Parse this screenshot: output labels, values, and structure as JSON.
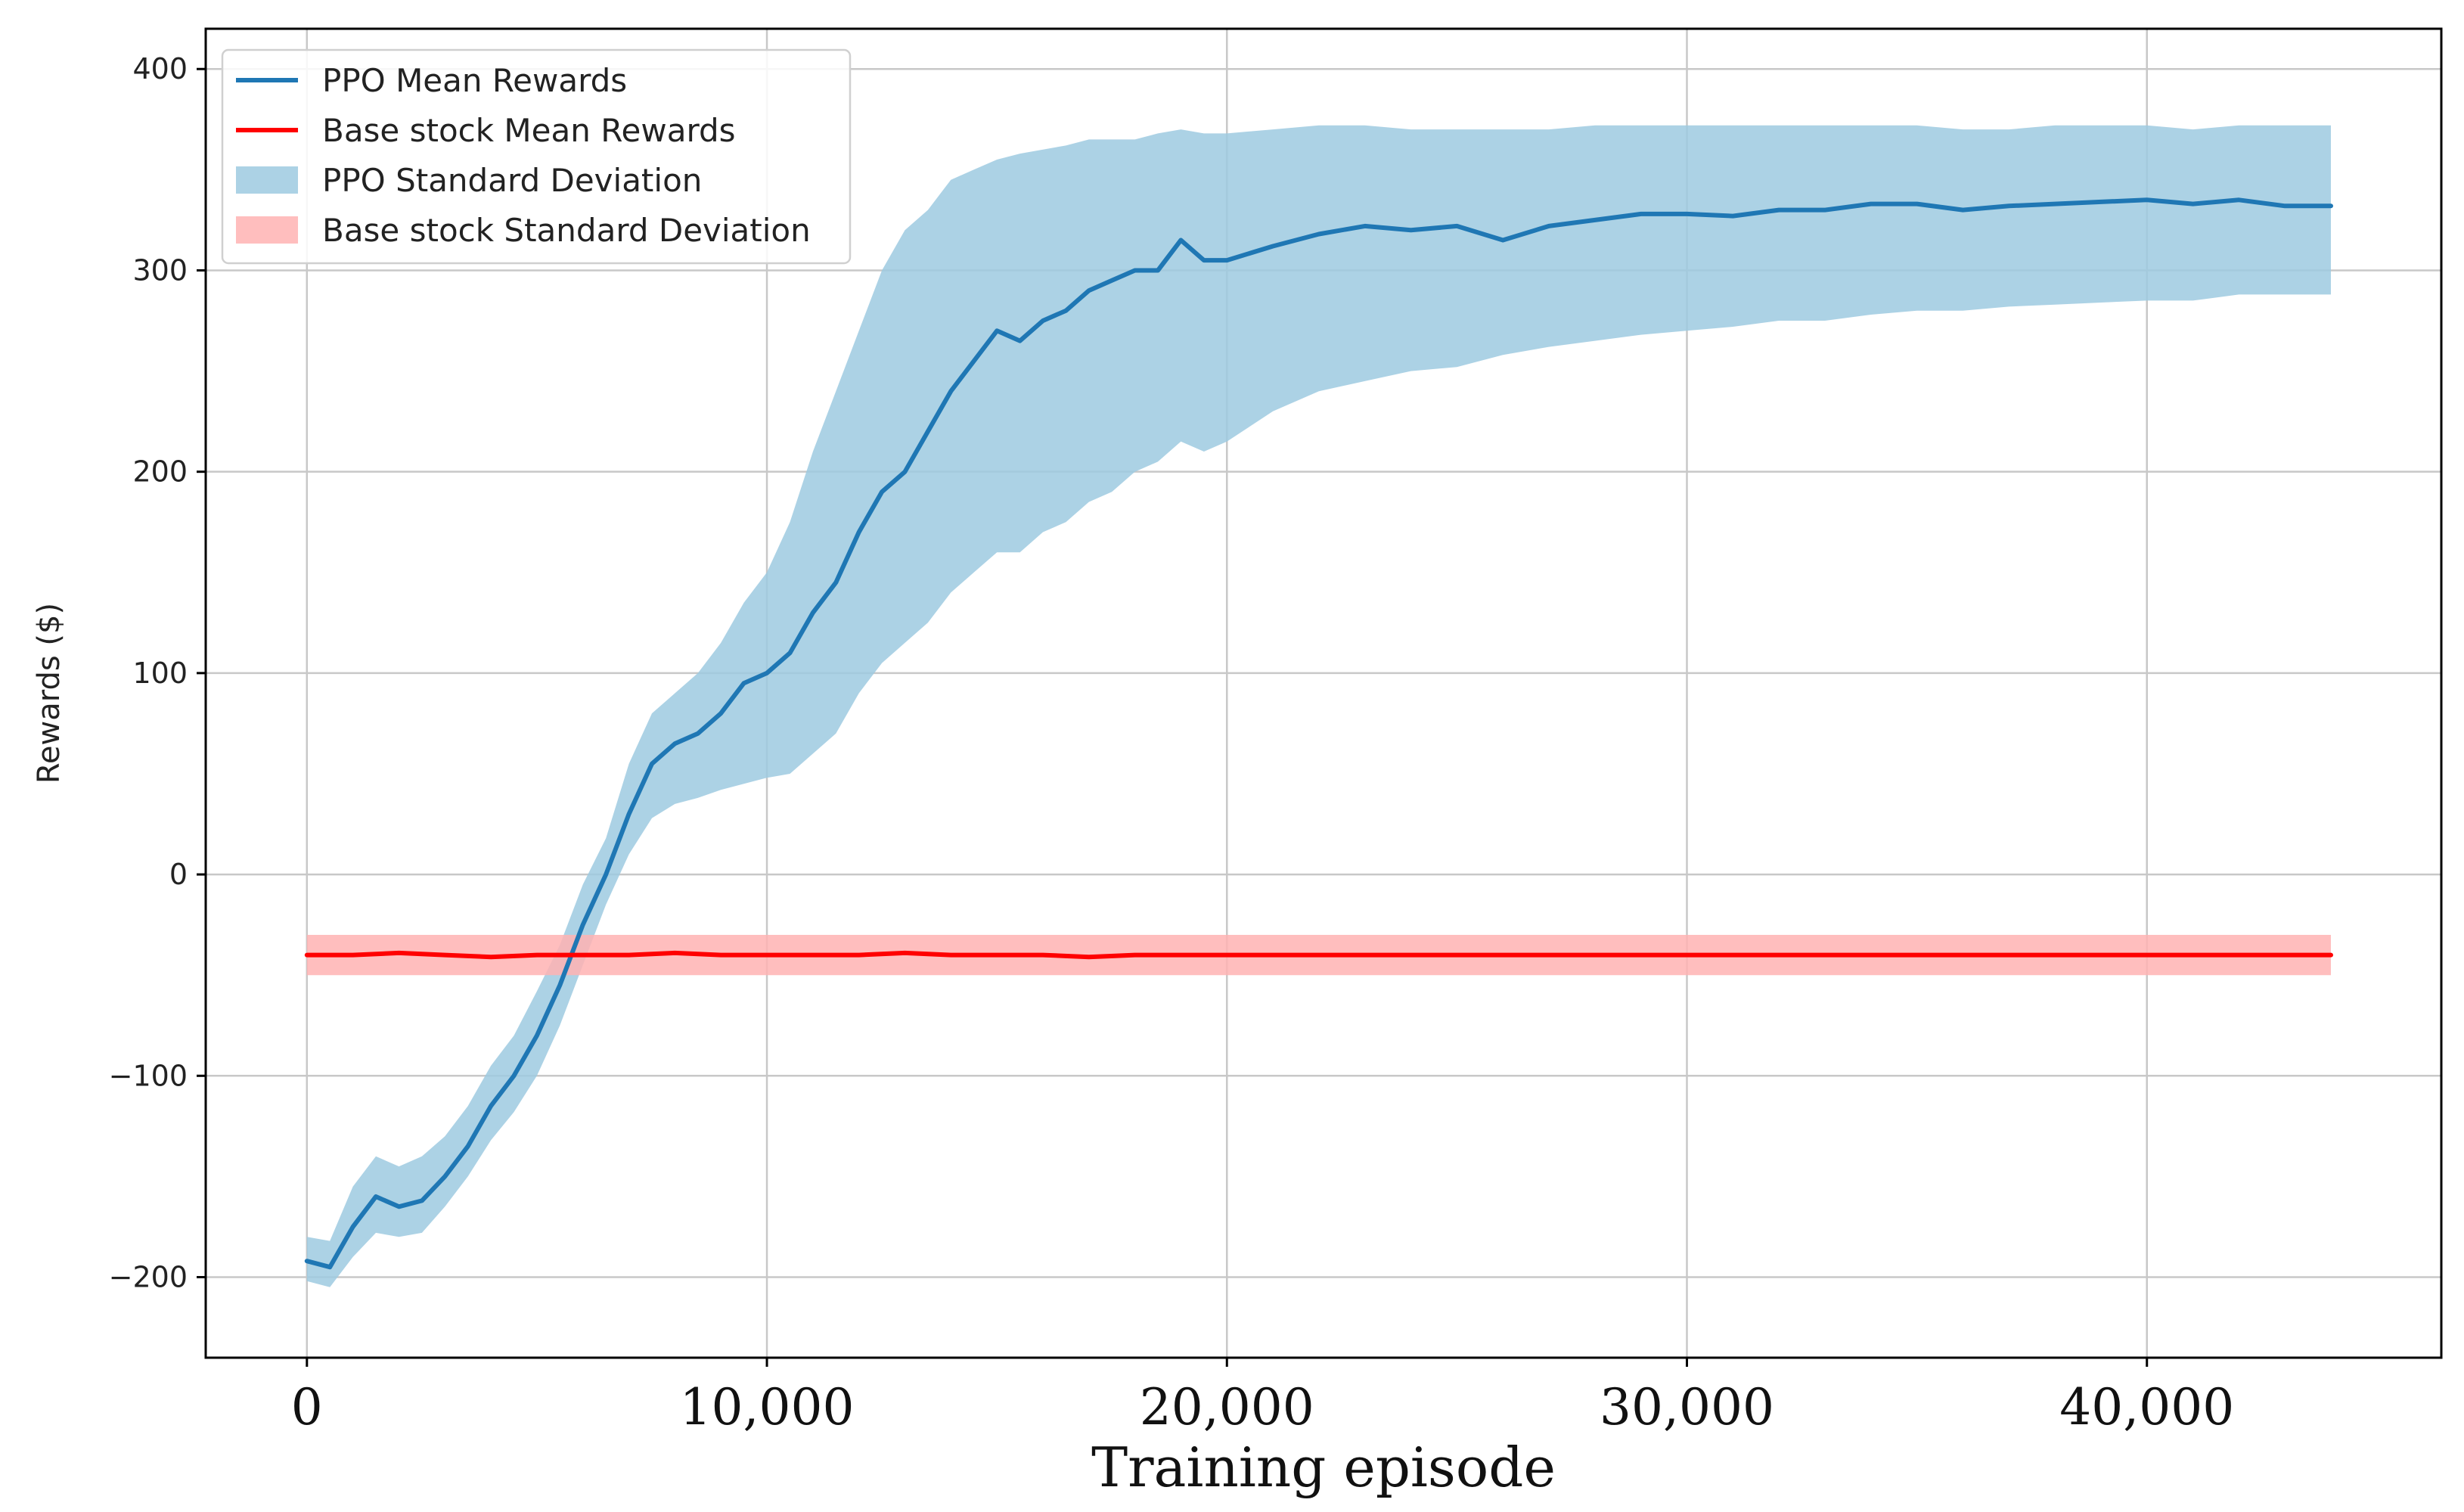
{
  "chart_data": {
    "type": "line",
    "xlabel": "Training episode",
    "ylabel": "Rewards ($)",
    "xlim": [
      -2200,
      46400
    ],
    "ylim": [
      -240,
      420
    ],
    "x_ticks": [
      0,
      10000,
      20000,
      30000,
      40000
    ],
    "x_tick_labels": [
      "0",
      "10,000",
      "20,000",
      "30,000",
      "40,000"
    ],
    "y_ticks": [
      -200,
      -100,
      0,
      100,
      200,
      300,
      400
    ],
    "y_tick_labels": [
      "−200",
      "−100",
      "0",
      "100",
      "200",
      "300",
      "400"
    ],
    "grid": true,
    "legend_position": "top-left",
    "colors": {
      "ppo_line": "#1f77b4",
      "base_line": "#ff0000",
      "ppo_band": "#9ecae1",
      "base_band": "#ffb3b3"
    },
    "legend": [
      {
        "label": "PPO Mean Rewards",
        "kind": "line",
        "color": "#1f77b4"
      },
      {
        "label": "Base stock Mean Rewards",
        "kind": "line",
        "color": "#ff0000"
      },
      {
        "label": "PPO Standard Deviation",
        "kind": "band",
        "color": "#9ecae1"
      },
      {
        "label": "Base stock Standard Deviation",
        "kind": "band",
        "color": "#ffb3b3"
      }
    ],
    "series": [
      {
        "name": "PPO Mean Rewards",
        "kind": "line",
        "x": [
          0,
          500,
          1000,
          1500,
          2000,
          2500,
          3000,
          3500,
          4000,
          4500,
          5000,
          5500,
          6000,
          6500,
          7000,
          7500,
          8000,
          8500,
          9000,
          9500,
          10000,
          10500,
          11000,
          11500,
          12000,
          12500,
          13000,
          13500,
          14000,
          14500,
          15000,
          15500,
          16000,
          16500,
          17000,
          17500,
          18000,
          18500,
          19000,
          19500,
          20000,
          21000,
          22000,
          23000,
          24000,
          25000,
          26000,
          27000,
          28000,
          29000,
          30000,
          31000,
          32000,
          33000,
          34000,
          35000,
          36000,
          37000,
          38000,
          39000,
          40000,
          41000,
          42000,
          43000,
          44000
        ],
        "y": [
          -192,
          -195,
          -175,
          -160,
          -165,
          -162,
          -150,
          -135,
          -115,
          -100,
          -80,
          -55,
          -25,
          0,
          30,
          55,
          65,
          70,
          80,
          95,
          100,
          110,
          130,
          145,
          170,
          190,
          200,
          220,
          240,
          255,
          270,
          265,
          275,
          280,
          290,
          295,
          300,
          300,
          315,
          305,
          305,
          312,
          318,
          322,
          320,
          322,
          315,
          322,
          325,
          328,
          328,
          327,
          330,
          330,
          333,
          333,
          330,
          332,
          333,
          334,
          335,
          333,
          335,
          332,
          332
        ]
      },
      {
        "name": "PPO Standard Deviation",
        "kind": "band",
        "x": [
          0,
          500,
          1000,
          1500,
          2000,
          2500,
          3000,
          3500,
          4000,
          4500,
          5000,
          5500,
          6000,
          6500,
          7000,
          7500,
          8000,
          8500,
          9000,
          9500,
          10000,
          10500,
          11000,
          11500,
          12000,
          12500,
          13000,
          13500,
          14000,
          14500,
          15000,
          15500,
          16000,
          16500,
          17000,
          17500,
          18000,
          18500,
          19000,
          19500,
          20000,
          21000,
          22000,
          23000,
          24000,
          25000,
          26000,
          27000,
          28000,
          29000,
          30000,
          31000,
          32000,
          33000,
          34000,
          35000,
          36000,
          37000,
          38000,
          39000,
          40000,
          41000,
          42000,
          43000,
          44000
        ],
        "lower": [
          -202,
          -205,
          -190,
          -178,
          -180,
          -178,
          -165,
          -150,
          -132,
          -118,
          -100,
          -75,
          -45,
          -15,
          10,
          28,
          35,
          38,
          42,
          45,
          48,
          50,
          60,
          70,
          90,
          105,
          115,
          125,
          140,
          150,
          160,
          160,
          170,
          175,
          185,
          190,
          200,
          205,
          215,
          210,
          215,
          230,
          240,
          245,
          250,
          252,
          258,
          262,
          265,
          268,
          270,
          272,
          275,
          275,
          278,
          280,
          280,
          282,
          283,
          284,
          285,
          285,
          288,
          288,
          288
        ],
        "upper": [
          -180,
          -182,
          -155,
          -140,
          -145,
          -140,
          -130,
          -115,
          -95,
          -80,
          -58,
          -35,
          -5,
          18,
          55,
          80,
          90,
          100,
          115,
          135,
          150,
          175,
          210,
          240,
          270,
          300,
          320,
          330,
          345,
          350,
          355,
          358,
          360,
          362,
          365,
          365,
          365,
          368,
          370,
          368,
          368,
          370,
          372,
          372,
          370,
          370,
          370,
          370,
          372,
          372,
          372,
          372,
          372,
          372,
          372,
          372,
          370,
          370,
          372,
          372,
          372,
          370,
          372,
          372,
          372
        ]
      },
      {
        "name": "Base stock Mean Rewards",
        "kind": "line",
        "x": [
          0,
          1000,
          2000,
          3000,
          4000,
          5000,
          6000,
          7000,
          8000,
          9000,
          10000,
          11000,
          12000,
          13000,
          14000,
          15000,
          16000,
          17000,
          18000,
          19000,
          20000,
          21000,
          22000,
          23000,
          24000,
          25000,
          26000,
          27000,
          28000,
          29000,
          30000,
          31000,
          32000,
          33000,
          34000,
          35000,
          36000,
          37000,
          38000,
          39000,
          40000,
          41000,
          42000,
          43000,
          44000
        ],
        "y": [
          -40,
          -40,
          -39,
          -40,
          -41,
          -40,
          -40,
          -40,
          -39,
          -40,
          -40,
          -40,
          -40,
          -39,
          -40,
          -40,
          -40,
          -41,
          -40,
          -40,
          -40,
          -40,
          -40,
          -40,
          -40,
          -40,
          -40,
          -40,
          -40,
          -40,
          -40,
          -40,
          -40,
          -40,
          -40,
          -40,
          -40,
          -40,
          -40,
          -40,
          -40,
          -40,
          -40,
          -40,
          -40
        ]
      },
      {
        "name": "Base stock Standard Deviation",
        "kind": "band",
        "x": [
          0,
          4000,
          8000,
          12000,
          16000,
          20000,
          24000,
          28000,
          32000,
          36000,
          40000,
          44000
        ],
        "lower": [
          -50,
          -50,
          -50,
          -50,
          -50,
          -50,
          -50,
          -50,
          -50,
          -50,
          -50,
          -50
        ],
        "upper": [
          -30,
          -30,
          -30,
          -30,
          -30,
          -30,
          -30,
          -30,
          -30,
          -30,
          -30,
          -30
        ]
      }
    ]
  }
}
